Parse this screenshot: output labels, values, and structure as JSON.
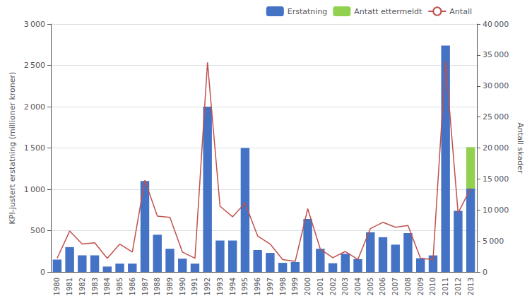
{
  "chart_data": {
    "type": "bar",
    "categories": [
      "1980",
      "1981",
      "1982",
      "1983",
      "1984",
      "1985",
      "1986",
      "1987",
      "1988",
      "1989",
      "1990",
      "1991",
      "1992",
      "1993",
      "1994",
      "1995",
      "1996",
      "1997",
      "1998",
      "1999",
      "2000",
      "2001",
      "2002",
      "2003",
      "2004",
      "2005",
      "2006",
      "2007",
      "2008",
      "2009",
      "2010",
      "2011",
      "2012",
      "2013"
    ],
    "series": [
      {
        "name": "Erstatning",
        "type": "bar",
        "color": "#4472C4",
        "values": [
          150,
          300,
          200,
          200,
          65,
          100,
          100,
          1100,
          450,
          280,
          160,
          100,
          2000,
          380,
          380,
          1500,
          265,
          230,
          110,
          120,
          640,
          280,
          105,
          220,
          155,
          480,
          420,
          330,
          470,
          165,
          200,
          2740,
          740,
          1010
        ]
      },
      {
        "name": "Antatt ettermeldt",
        "type": "bar",
        "color": "#92D050",
        "values": [
          0,
          0,
          0,
          0,
          0,
          0,
          0,
          0,
          0,
          0,
          0,
          0,
          0,
          0,
          0,
          0,
          0,
          0,
          0,
          0,
          0,
          0,
          0,
          0,
          0,
          0,
          0,
          0,
          0,
          0,
          0,
          0,
          0,
          500
        ]
      },
      {
        "name": "Antall",
        "type": "line",
        "color": "#C0504D",
        "axis": "y2",
        "values": [
          2200,
          6600,
          4500,
          4700,
          2200,
          4500,
          3200,
          14800,
          9000,
          8800,
          3200,
          2200,
          33800,
          10600,
          8900,
          11100,
          5800,
          4500,
          2000,
          1700,
          10200,
          3700,
          2300,
          3300,
          2000,
          7000,
          8000,
          7200,
          7500,
          2200,
          2000,
          34000,
          9500,
          13500
        ]
      }
    ],
    "stacked": true,
    "ylabel": "KPI-justert erstatning (millioner kroner)",
    "y2label": "Antall skader",
    "ylim": [
      0,
      3000
    ],
    "yticks": [
      0,
      500,
      {
        "value": 1000,
        "label": "1 000"
      },
      {
        "value": 1500,
        "label": "1 500"
      },
      {
        "value": 2000,
        "label": "2 000"
      },
      {
        "value": 2500,
        "label": "2 500"
      },
      {
        "value": 3000,
        "label": "3 000"
      }
    ],
    "y2lim": [
      0,
      40000
    ],
    "y2ticks": [
      0,
      {
        "value": 5000,
        "label": "5 000"
      },
      {
        "value": 10000,
        "label": "10 000"
      },
      {
        "value": 15000,
        "label": "15 000"
      },
      {
        "value": 20000,
        "label": "20 000"
      },
      {
        "value": 25000,
        "label": "25 000"
      },
      {
        "value": 30000,
        "label": "30 000"
      },
      {
        "value": 35000,
        "label": "35 000"
      },
      {
        "value": 40000,
        "label": "40 000"
      }
    ],
    "grid": true,
    "legend": "upper right"
  }
}
